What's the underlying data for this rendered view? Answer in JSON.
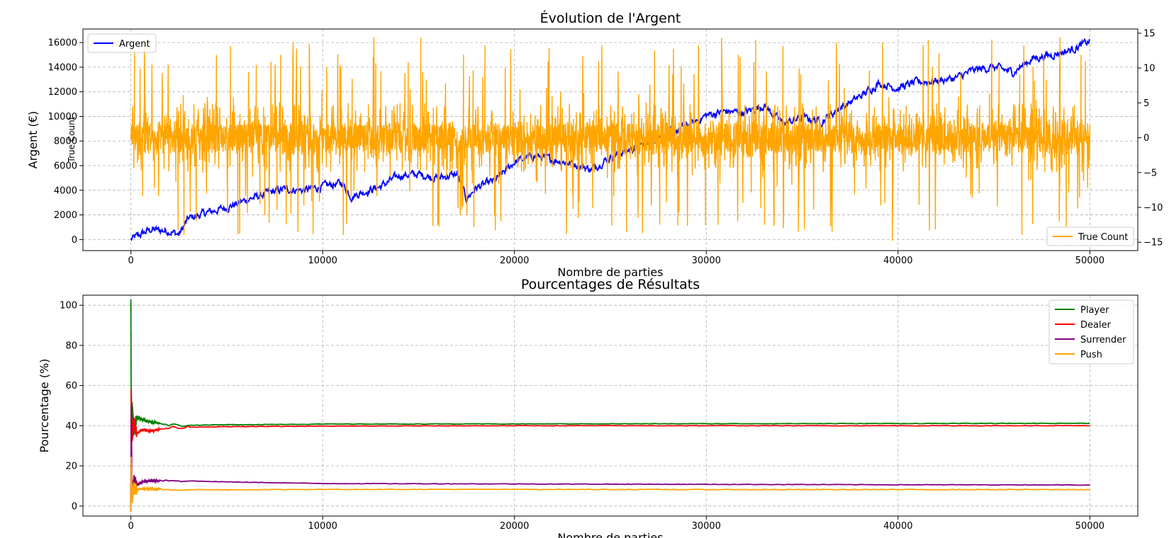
{
  "chart_data": [
    {
      "type": "line",
      "title": "Évolution de l'Argent",
      "xlabel": "Nombre de parties",
      "ylabel": "Argent (€)",
      "ylabel_right": "True Count",
      "xlim": [
        -2500,
        52500
      ],
      "ylim": [
        -900,
        17100
      ],
      "ylim_right": [
        -16.2,
        15.6
      ],
      "xticks": [
        0,
        10000,
        20000,
        30000,
        40000,
        50000
      ],
      "yticks": [
        0,
        2000,
        4000,
        6000,
        8000,
        10000,
        12000,
        14000,
        16000
      ],
      "yticks_right": [
        -15,
        -10,
        -5,
        0,
        5,
        10,
        15
      ],
      "grid": true,
      "legend": [
        {
          "name": "Argent",
          "color": "#0000ff",
          "placement": "upper left"
        },
        {
          "name": "True Count",
          "color": "#ffa500",
          "placement": "lower right"
        }
      ],
      "series": [
        {
          "name": "Argent",
          "axis": "left",
          "color": "#0000ff",
          "x": [
            0,
            1000,
            2000,
            2500,
            3000,
            4000,
            5000,
            6000,
            7000,
            8000,
            9000,
            10000,
            11000,
            11500,
            12000,
            13000,
            14000,
            15000,
            16000,
            17000,
            17500,
            18000,
            19000,
            20000,
            21000,
            22000,
            23000,
            24000,
            25000,
            26000,
            27000,
            28000,
            29000,
            30000,
            31000,
            32000,
            33000,
            34000,
            35000,
            36000,
            37000,
            38000,
            39000,
            40000,
            41000,
            42000,
            43000,
            44000,
            45000,
            46000,
            47000,
            48000,
            49000,
            50000
          ],
          "y": [
            0,
            800,
            700,
            400,
            1700,
            2200,
            2600,
            3200,
            3700,
            4100,
            4000,
            4300,
            4600,
            3500,
            3800,
            4300,
            5200,
            5300,
            5000,
            5300,
            3300,
            4200,
            4800,
            6300,
            6800,
            6500,
            6200,
            5700,
            6700,
            7300,
            8000,
            8600,
            9200,
            10100,
            10400,
            10300,
            10900,
            9400,
            9900,
            9600,
            10700,
            11600,
            12700,
            12300,
            12800,
            12900,
            13100,
            13800,
            14000,
            13600,
            14700,
            15000,
            15400,
            16100
          ]
        },
        {
          "name": "True Count",
          "axis": "right",
          "color": "#ffa500",
          "x": [
            0,
            50000
          ],
          "y": [
            0,
            0
          ],
          "range": [
            -14,
            14.5
          ],
          "note_points": [
            {
              "x": 700,
              "y": 14
            },
            {
              "x": 9300,
              "y": 13.5
            },
            {
              "x": 16000,
              "y": -12.5
            },
            {
              "x": 30800,
              "y": 14.3
            },
            {
              "x": 34800,
              "y": -13.5
            },
            {
              "x": 39700,
              "y": -14.8
            },
            {
              "x": 48400,
              "y": -12
            }
          ]
        }
      ]
    },
    {
      "type": "line",
      "title": "Pourcentages de Résultats",
      "xlabel": "Nombre de parties",
      "ylabel": "Pourcentage (%)",
      "xlim": [
        -2500,
        52500
      ],
      "ylim": [
        -5,
        105
      ],
      "xticks": [
        0,
        10000,
        20000,
        30000,
        40000,
        50000
      ],
      "yticks": [
        0,
        20,
        40,
        60,
        80,
        100
      ],
      "grid": true,
      "legend_placement": "upper right",
      "series": [
        {
          "name": "Player",
          "color": "#008000",
          "x": [
            0,
            20,
            60,
            150,
            300,
            600,
            1000,
            2000,
            3000,
            5000,
            10000,
            20000,
            30000,
            40000,
            50000
          ],
          "y": [
            100,
            30,
            50,
            38,
            44,
            43,
            42,
            40.5,
            40.2,
            40.5,
            40.8,
            40.9,
            41,
            41.1,
            41.2
          ]
        },
        {
          "name": "Dealer",
          "color": "#ff0000",
          "x": [
            0,
            20,
            60,
            150,
            300,
            600,
            1000,
            2000,
            3000,
            5000,
            10000,
            20000,
            30000,
            40000,
            50000
          ],
          "y": [
            0,
            56,
            34,
            42,
            36,
            38,
            37.5,
            39,
            39.3,
            39.5,
            39.8,
            40,
            40,
            40,
            40
          ]
        },
        {
          "name": "Surrender",
          "color": "#800080",
          "x": [
            0,
            20,
            60,
            150,
            300,
            600,
            1000,
            2000,
            3000,
            5000,
            10000,
            20000,
            30000,
            40000,
            50000
          ],
          "y": [
            0,
            48,
            6,
            13,
            10.5,
            12,
            12.5,
            12.8,
            12.5,
            12,
            11.2,
            11,
            10.8,
            10.6,
            10.5
          ]
        },
        {
          "name": "Push",
          "color": "#ffa500",
          "x": [
            0,
            20,
            60,
            150,
            300,
            600,
            1000,
            2000,
            3000,
            5000,
            10000,
            20000,
            30000,
            40000,
            50000
          ],
          "y": [
            0,
            22,
            4,
            9,
            8,
            8.6,
            8.5,
            8.3,
            8.2,
            8.1,
            8.3,
            8.3,
            8.2,
            8.2,
            8.2
          ]
        }
      ]
    }
  ]
}
